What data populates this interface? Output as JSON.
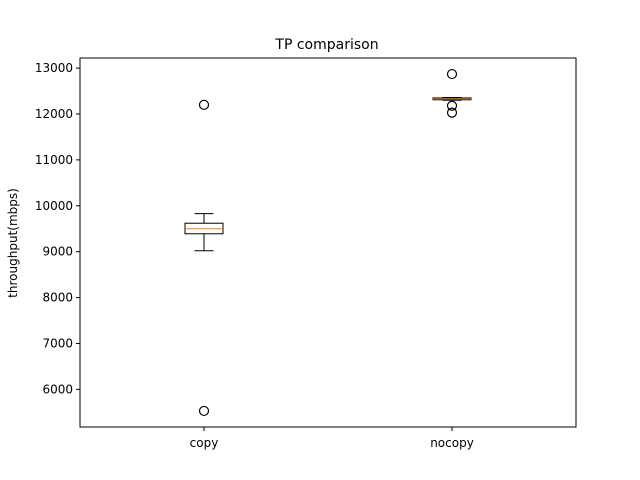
{
  "chart_data": {
    "type": "box",
    "title": "TP comparison",
    "xlabel": "",
    "ylabel": "throughput(mbps)",
    "ylim": [
      5180,
      13220
    ],
    "yticks": [
      6000,
      7000,
      8000,
      9000,
      10000,
      11000,
      12000,
      13000
    ],
    "ytick_labels": [
      "6000",
      "7000",
      "8000",
      "9000",
      "10000",
      "11000",
      "12000",
      "13000"
    ],
    "categories": [
      "copy",
      "nocopy"
    ],
    "grid": false,
    "boxes": [
      {
        "label": "copy",
        "whisker_low": 9020,
        "q1": 9390,
        "median": 9500,
        "q3": 9620,
        "whisker_high": 9830,
        "outliers": [
          12200,
          5530
        ]
      },
      {
        "label": "nocopy",
        "whisker_low": 12300,
        "q1": 12310,
        "median": 12330,
        "q3": 12350,
        "whisker_high": 12360,
        "outliers": [
          12870,
          12180,
          12030
        ]
      }
    ],
    "colors": {
      "median": "#ff7f0e",
      "box": "#000000",
      "outlier": "#000000"
    }
  }
}
